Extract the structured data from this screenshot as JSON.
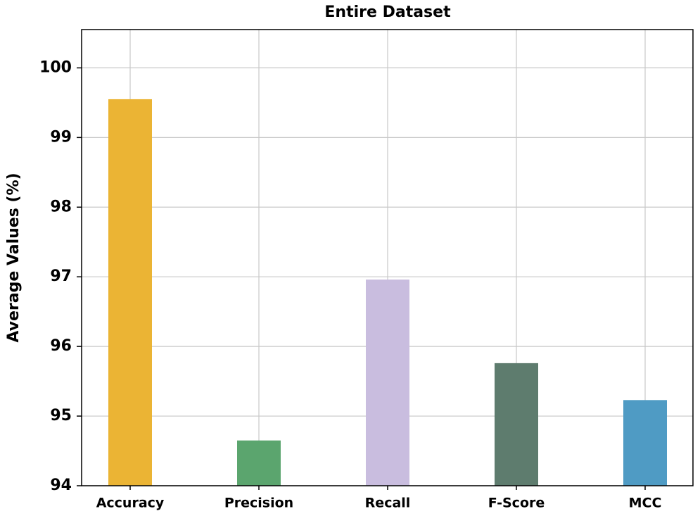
{
  "chart_data": {
    "type": "bar",
    "title": "Entire Dataset",
    "ylabel": "Average Values (%)",
    "categories": [
      "Accuracy",
      "Precision",
      "Recall",
      "F-Score",
      "MCC"
    ],
    "values": [
      99.55,
      94.65,
      96.96,
      95.76,
      95.23
    ],
    "colors": [
      "#ebb434",
      "#5ba56e",
      "#c9bddf",
      "#5e7c6e",
      "#4f9bc4"
    ],
    "ylim": [
      94,
      100.55
    ],
    "yticks": [
      94,
      95,
      96,
      97,
      98,
      99,
      100
    ],
    "grid": true
  }
}
